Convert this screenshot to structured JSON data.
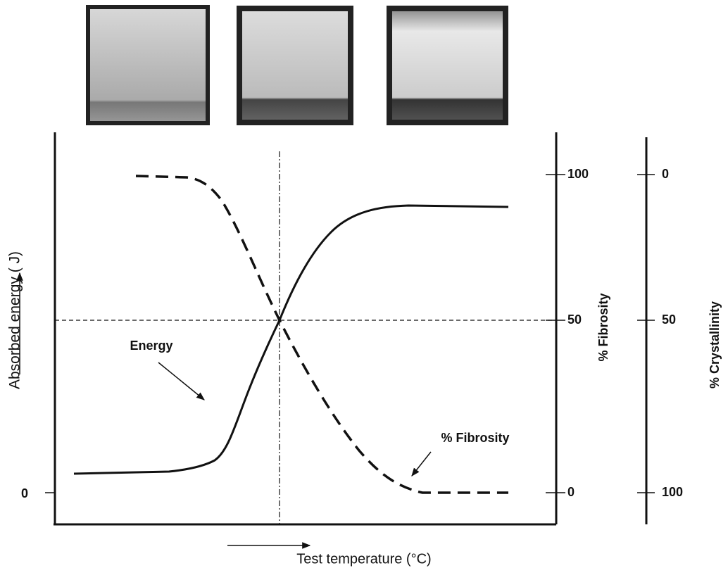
{
  "y_axis_label": "Absorbed energy ( J)",
  "y_axis_tick": 0,
  "x_axis_label": "Test temperature (°C)",
  "fibrosity_axis": {
    "label": "% Fibrosity",
    "ticks": [
      100,
      50,
      0
    ]
  },
  "crystallinity_axis": {
    "label": "% Crystallinity",
    "ticks": [
      0,
      50,
      100
    ]
  },
  "annotations": {
    "energy": "Energy",
    "fibrosity": "% Fibrosity"
  }
}
